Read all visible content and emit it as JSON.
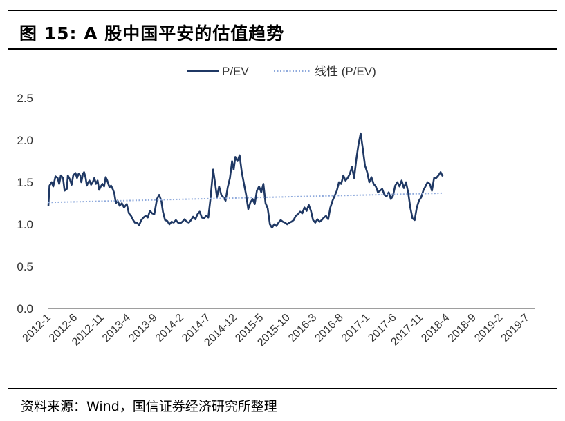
{
  "title": "图 15:  A 股中国平安的估值趋势",
  "source": "资料来源：Wind，国信证券经济研究所整理",
  "chart_data": {
    "type": "line",
    "y_ticks": [
      "0.0",
      "0.5",
      "1.0",
      "1.5",
      "2.0",
      "2.5"
    ],
    "ylim": [
      0,
      2.5
    ],
    "x_tick_labels": [
      "2012-1",
      "2012-6",
      "2012-11",
      "2013-4",
      "2013-9",
      "2014-2",
      "2014-7",
      "2014-12",
      "2015-5",
      "2015-10",
      "2016-3",
      "2016-8",
      "2017-1",
      "2017-6",
      "2017-11",
      "2018-4",
      "2018-9",
      "2019-2",
      "2019-7"
    ],
    "xlim": [
      0,
      90
    ],
    "grid": false,
    "legend_position": "top",
    "series": [
      {
        "name": "P/EV",
        "color": "#1f3864",
        "style": "solid",
        "points": [
          [
            0,
            1.22
          ],
          [
            0.2,
            1.46
          ],
          [
            0.6,
            1.5
          ],
          [
            0.9,
            1.45
          ],
          [
            1.3,
            1.57
          ],
          [
            1.7,
            1.55
          ],
          [
            2,
            1.48
          ],
          [
            2.3,
            1.58
          ],
          [
            2.7,
            1.55
          ],
          [
            3,
            1.4
          ],
          [
            3.4,
            1.42
          ],
          [
            3.6,
            1.58
          ],
          [
            4,
            1.53
          ],
          [
            4.3,
            1.47
          ],
          [
            4.6,
            1.58
          ],
          [
            5,
            1.61
          ],
          [
            5.3,
            1.55
          ],
          [
            5.6,
            1.6
          ],
          [
            5.9,
            1.58
          ],
          [
            6.1,
            1.5
          ],
          [
            6.4,
            1.6
          ],
          [
            6.6,
            1.62
          ],
          [
            6.9,
            1.55
          ],
          [
            7.1,
            1.46
          ],
          [
            7.4,
            1.5
          ],
          [
            7.6,
            1.52
          ],
          [
            7.9,
            1.47
          ],
          [
            8.2,
            1.5
          ],
          [
            8.5,
            1.55
          ],
          [
            8.8,
            1.48
          ],
          [
            9.1,
            1.52
          ],
          [
            9.4,
            1.41
          ],
          [
            9.7,
            1.45
          ],
          [
            10,
            1.48
          ],
          [
            10.3,
            1.45
          ],
          [
            10.6,
            1.56
          ],
          [
            10.9,
            1.52
          ],
          [
            11.3,
            1.44
          ],
          [
            11.6,
            1.46
          ],
          [
            11.9,
            1.42
          ],
          [
            12.2,
            1.37
          ],
          [
            12.5,
            1.25
          ],
          [
            12.8,
            1.28
          ],
          [
            13.2,
            1.22
          ],
          [
            13.6,
            1.25
          ],
          [
            14,
            1.2
          ],
          [
            14.5,
            1.24
          ],
          [
            14.9,
            1.13
          ],
          [
            15.3,
            1.1
          ],
          [
            15.7,
            1.05
          ],
          [
            16,
            1.02
          ],
          [
            16.4,
            1.02
          ],
          [
            16.8,
            0.99
          ],
          [
            17.2,
            1.05
          ],
          [
            17.6,
            1.08
          ],
          [
            18,
            1.1
          ],
          [
            18.4,
            1.08
          ],
          [
            18.8,
            1.16
          ],
          [
            19.2,
            1.13
          ],
          [
            19.6,
            1.12
          ],
          [
            20.1,
            1.3
          ],
          [
            20.5,
            1.35
          ],
          [
            20.9,
            1.28
          ],
          [
            21.2,
            1.15
          ],
          [
            21.6,
            1.05
          ],
          [
            22,
            1.04
          ],
          [
            22.4,
            1.0
          ],
          [
            22.8,
            1.03
          ],
          [
            23.2,
            1.02
          ],
          [
            23.6,
            1.05
          ],
          [
            24,
            1.02
          ],
          [
            24.4,
            1.01
          ],
          [
            24.8,
            1.03
          ],
          [
            25.2,
            1.06
          ],
          [
            25.6,
            1.03
          ],
          [
            26,
            1.02
          ],
          [
            26.4,
            1.05
          ],
          [
            26.8,
            1.09
          ],
          [
            27.2,
            1.06
          ],
          [
            27.6,
            1.12
          ],
          [
            28,
            1.15
          ],
          [
            28.4,
            1.08
          ],
          [
            28.8,
            1.07
          ],
          [
            29.2,
            1.1
          ],
          [
            29.6,
            1.08
          ],
          [
            30,
            1.3
          ],
          [
            30.5,
            1.65
          ],
          [
            30.9,
            1.47
          ],
          [
            31.2,
            1.32
          ],
          [
            31.6,
            1.45
          ],
          [
            32,
            1.35
          ],
          [
            32.4,
            1.32
          ],
          [
            32.8,
            1.28
          ],
          [
            33.2,
            1.44
          ],
          [
            33.6,
            1.55
          ],
          [
            34,
            1.75
          ],
          [
            34.3,
            1.65
          ],
          [
            34.6,
            1.8
          ],
          [
            35,
            1.75
          ],
          [
            35.4,
            1.82
          ],
          [
            35.8,
            1.62
          ],
          [
            36.2,
            1.48
          ],
          [
            36.6,
            1.35
          ],
          [
            37,
            1.18
          ],
          [
            37.4,
            1.26
          ],
          [
            37.8,
            1.3
          ],
          [
            38.2,
            1.24
          ],
          [
            38.6,
            1.4
          ],
          [
            39,
            1.45
          ],
          [
            39.4,
            1.38
          ],
          [
            39.8,
            1.48
          ],
          [
            40.2,
            1.25
          ],
          [
            40.6,
            1.19
          ],
          [
            41,
            1.0
          ],
          [
            41.4,
            0.96
          ],
          [
            41.8,
            1.0
          ],
          [
            42.2,
            0.98
          ],
          [
            42.6,
            1.02
          ],
          [
            43,
            1.05
          ],
          [
            43.4,
            1.03
          ],
          [
            43.8,
            1.02
          ],
          [
            44.2,
            1.0
          ],
          [
            44.6,
            1.02
          ],
          [
            45,
            1.03
          ],
          [
            45.4,
            1.05
          ],
          [
            45.8,
            1.1
          ],
          [
            46.2,
            1.12
          ],
          [
            46.6,
            1.15
          ],
          [
            47,
            1.13
          ],
          [
            47.4,
            1.2
          ],
          [
            47.8,
            1.16
          ],
          [
            48.2,
            1.23
          ],
          [
            48.6,
            1.16
          ],
          [
            49,
            1.05
          ],
          [
            49.4,
            1.02
          ],
          [
            49.8,
            1.06
          ],
          [
            50.2,
            1.03
          ],
          [
            50.6,
            1.05
          ],
          [
            51,
            1.08
          ],
          [
            51.4,
            1.1
          ],
          [
            51.8,
            1.06
          ],
          [
            52.2,
            1.2
          ],
          [
            52.6,
            1.28
          ],
          [
            53,
            1.34
          ],
          [
            53.4,
            1.4
          ],
          [
            53.8,
            1.5
          ],
          [
            54.2,
            1.48
          ],
          [
            54.6,
            1.58
          ],
          [
            55,
            1.52
          ],
          [
            55.4,
            1.55
          ],
          [
            55.8,
            1.6
          ],
          [
            56.2,
            1.68
          ],
          [
            56.6,
            1.55
          ],
          [
            57,
            1.77
          ],
          [
            57.4,
            1.95
          ],
          [
            57.8,
            2.08
          ],
          [
            58.2,
            1.9
          ],
          [
            58.6,
            1.7
          ],
          [
            59,
            1.62
          ],
          [
            59.4,
            1.5
          ],
          [
            59.8,
            1.56
          ],
          [
            60.2,
            1.48
          ],
          [
            60.6,
            1.45
          ],
          [
            61,
            1.38
          ],
          [
            61.4,
            1.4
          ],
          [
            61.8,
            1.42
          ],
          [
            62.2,
            1.35
          ],
          [
            62.6,
            1.33
          ],
          [
            63,
            1.38
          ],
          [
            63.4,
            1.3
          ],
          [
            63.8,
            1.34
          ],
          [
            64.2,
            1.46
          ],
          [
            64.6,
            1.5
          ],
          [
            65,
            1.45
          ],
          [
            65.4,
            1.52
          ],
          [
            65.8,
            1.43
          ],
          [
            66.2,
            1.5
          ],
          [
            66.6,
            1.38
          ],
          [
            67,
            1.2
          ],
          [
            67.4,
            1.07
          ],
          [
            67.8,
            1.05
          ],
          [
            68.2,
            1.2
          ],
          [
            68.6,
            1.28
          ],
          [
            69,
            1.32
          ],
          [
            69.4,
            1.4
          ],
          [
            69.8,
            1.45
          ],
          [
            70.2,
            1.5
          ],
          [
            70.6,
            1.48
          ],
          [
            71,
            1.4
          ],
          [
            71.4,
            1.55
          ],
          [
            71.8,
            1.55
          ],
          [
            72.2,
            1.58
          ],
          [
            72.6,
            1.62
          ],
          [
            73,
            1.57
          ]
        ]
      },
      {
        "name": "线性 (P/EV)",
        "color": "#8faadc",
        "style": "dotted",
        "points": [
          [
            0,
            1.26
          ],
          [
            73,
            1.37
          ]
        ]
      }
    ]
  }
}
